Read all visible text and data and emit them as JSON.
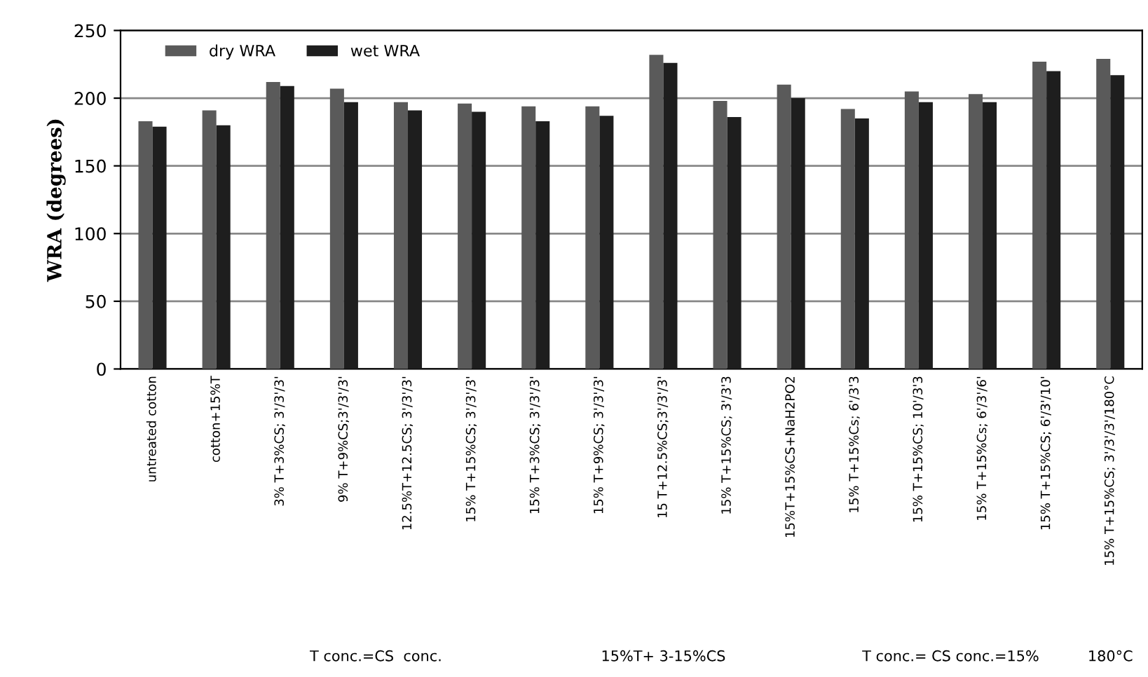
{
  "chart_data": {
    "type": "bar",
    "ylabel": "WRA (degrees)",
    "categories": [
      "untreated cotton",
      "cotton+15%T",
      "3% T+3%CS; 3'/3'/3'",
      "9% T+9%CS;3'/3'/3'",
      "12.5%T+12.5CS; 3'/3'/3'",
      "15% T+15%CS; 3'/3'/3'",
      "15% T+3%CS; 3'/3'/3'",
      "15% T+9%CS; 3'/3'/3'",
      "15 T+12.5%CS;3'/3'/3'",
      "15% T+15%CS; 3'/3'3",
      "15%T+15%CS+NaH2PO2",
      "15% T+15%Cs; 6'/3'3",
      "15% T+15%CS; 10'/3'3",
      "15% T+15%Cs; 6'/3'/6'",
      "15% T+15%CS; 6'/3'/10'",
      "15% T+15%CS; 3'/3'/3'/180°C"
    ],
    "series": [
      {
        "name": "dry WRA",
        "color": "#5a5a5a",
        "values": [
          183,
          191,
          212,
          207,
          197,
          196,
          194,
          194,
          232,
          198,
          210,
          192,
          205,
          203,
          227,
          229
        ]
      },
      {
        "name": "wet WRA",
        "color": "#1e1e1e",
        "values": [
          179,
          180,
          209,
          197,
          191,
          190,
          183,
          187,
          226,
          186,
          200,
          185,
          197,
          197,
          220,
          217
        ]
      }
    ],
    "ylim": [
      0,
      250
    ],
    "yticks": [
      0,
      50,
      100,
      150,
      200,
      250
    ],
    "grid": "y",
    "legend": "top left",
    "annotations": [
      "T conc.=CS  conc.",
      "15%T+ 3-15%CS",
      "T conc.= CS conc.=15%",
      "180°C"
    ]
  }
}
